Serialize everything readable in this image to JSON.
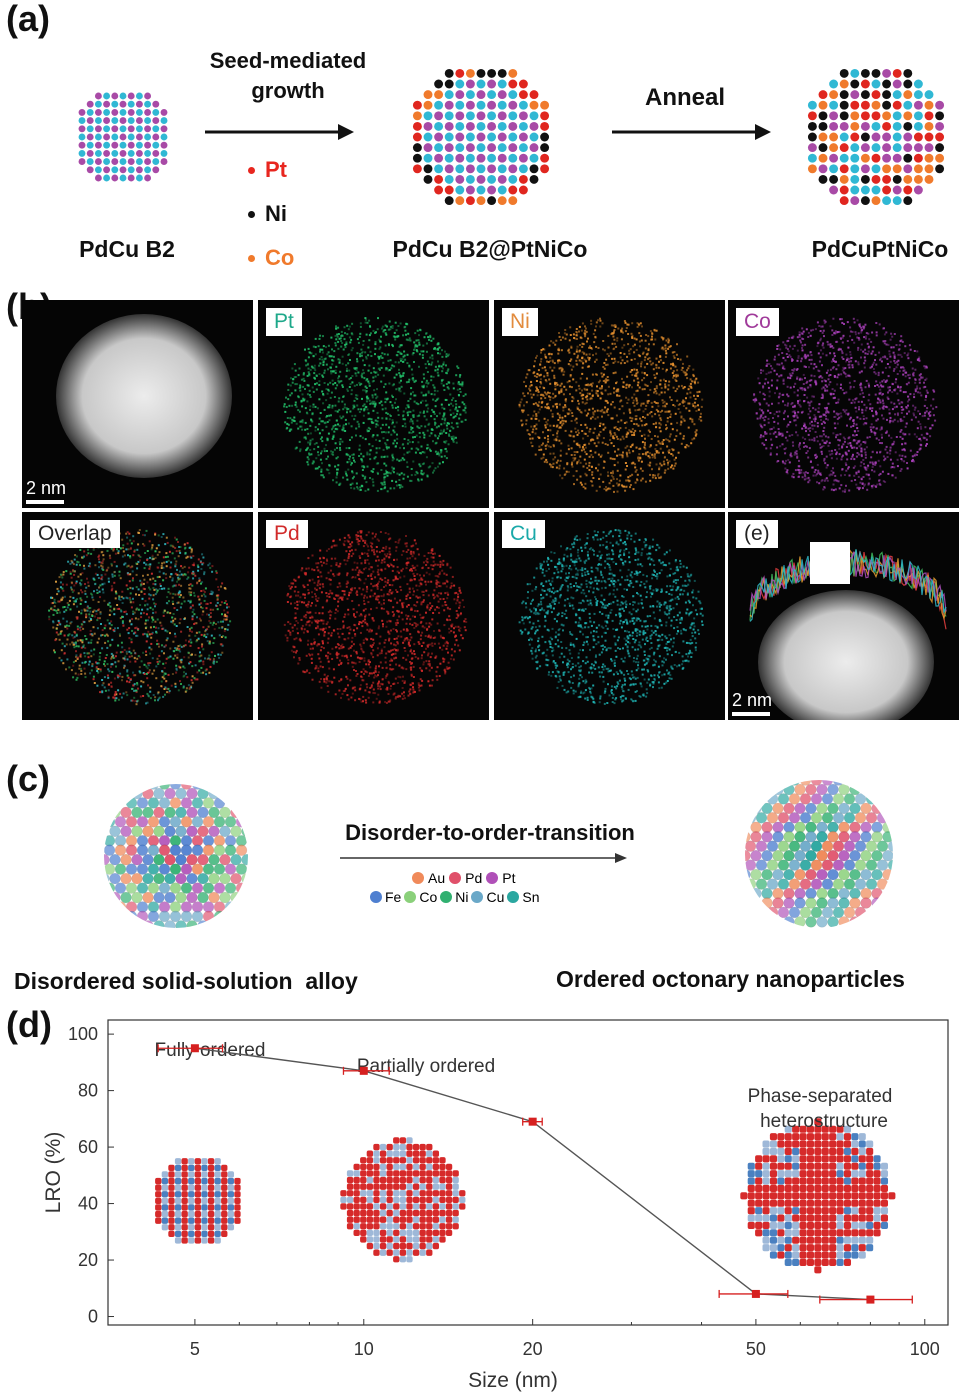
{
  "panel_a": {
    "letter": "(a)",
    "step1": "Seed-mediated\ngrowth",
    "step2": "Anneal",
    "legend": [
      {
        "name": "Pt",
        "color": "#e8261f"
      },
      {
        "name": "Ni",
        "color": "#111111"
      },
      {
        "name": "Co",
        "color": "#f07a2c"
      }
    ],
    "labels": [
      "PdCu B2",
      "PdCu B2@PtNiCo",
      "PdCuPtNiCo"
    ]
  },
  "panel_b": {
    "letter": "(b)",
    "tiles": [
      {
        "label": "",
        "color": "#dcdcdc"
      },
      {
        "label": "Pt",
        "color": "#22c16a"
      },
      {
        "label": "Ni",
        "color": "#e6902e"
      },
      {
        "label": "Co",
        "color": "#a840b8"
      },
      {
        "label": "Overlap",
        "color": "#9fae6a"
      },
      {
        "label": "Pd",
        "color": "#d12a2a"
      },
      {
        "label": "Cu",
        "color": "#1fb5b5"
      },
      {
        "label": "(e)",
        "color": "#dcdcdc"
      }
    ],
    "scale_text": "2 nm",
    "tag_colors": {
      "Pt": "#1ea88a",
      "Ni": "#e28b3d",
      "Co": "#a03a9a",
      "Pd": "#d12a2a",
      "Cu": "#1aa9a9",
      "Overlap": "#222222",
      "(e)": "#222222"
    }
  },
  "panel_c": {
    "letter": "(c)",
    "arrow_label": "Disorder-to-order-transition",
    "elements_row1": [
      {
        "name": "Au",
        "color": "#f08a5a"
      },
      {
        "name": "Pd",
        "color": "#e0506a"
      },
      {
        "name": "Pt",
        "color": "#b050b8"
      }
    ],
    "elements_row2": [
      {
        "name": "Fe",
        "color": "#4e7fd0"
      },
      {
        "name": "Co",
        "color": "#8ad07a"
      },
      {
        "name": "Ni",
        "color": "#30b070"
      },
      {
        "name": "Cu",
        "color": "#6aa8c8"
      },
      {
        "name": "Sn",
        "color": "#2aa7a0"
      }
    ],
    "left_label": "Disordered solid-solution  alloy",
    "right_label": "Ordered octonary nanoparticles"
  },
  "panel_d": {
    "letter": "(d)"
  },
  "chart_data": {
    "type": "line",
    "xlabel": "Size (nm)",
    "ylabel": "LRO (%)",
    "x_scale": "log",
    "xlim": [
      3.5,
      110
    ],
    "ylim": [
      -3,
      105
    ],
    "xticks": [
      5,
      10,
      20,
      50,
      100
    ],
    "yticks": [
      0,
      20,
      40,
      60,
      80,
      100
    ],
    "series": [
      {
        "points": [
          {
            "x": 5,
            "y": 95,
            "xerr_lo": 4.3,
            "xerr_hi": 5.6
          },
          {
            "x": 10,
            "y": 87,
            "xerr_lo": 9.2,
            "xerr_hi": 11.1
          },
          {
            "x": 20,
            "y": 69,
            "xerr_lo": 19.2,
            "xerr_hi": 20.8
          },
          {
            "x": 50,
            "y": 8,
            "xerr_lo": 43,
            "xerr_hi": 57
          },
          {
            "x": 80,
            "y": 6,
            "xerr_lo": 65,
            "xerr_hi": 95
          }
        ],
        "color": "#d62020",
        "line_color": "#555555"
      }
    ],
    "annotations": [
      {
        "text": "Fully ordered"
      },
      {
        "text": "Partially ordered"
      },
      {
        "text": "Phase-separated"
      },
      {
        "text": "heterostructure"
      }
    ]
  }
}
